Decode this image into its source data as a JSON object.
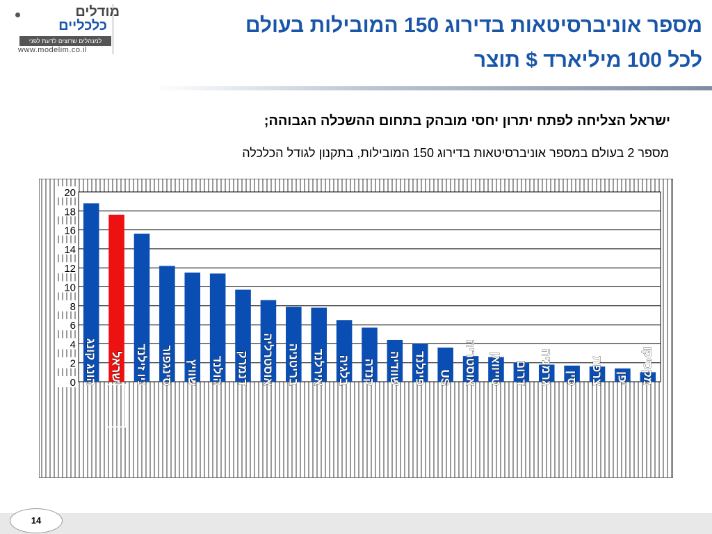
{
  "logo": {
    "brand_line1": "מודלים",
    "brand_line2": "כלכליים",
    "tagline": "למנהלים שרוצים לדעת לפני",
    "url": "www.modelim.co.il"
  },
  "title": {
    "line1": "מספר אוניברסיטאות בדירוג 150 המובילות בעולם",
    "line2": "לכל 100 מיליארד $ תוצר"
  },
  "subtitle": {
    "line1": "ישראל הצליחה לפתח יתרון יחסי מובהק בתחום ההשכלה הגבוהה;",
    "line2": "מספר 2 בעולם במספר אוניברסיטאות בדירוג 150 המובילות, בתקנון לגודל הכלכלה"
  },
  "page_number": "14",
  "colors": {
    "bar": "#0a4db3",
    "highlight_bar": "#ee1111",
    "title": "#1a56a8",
    "grid": "#000000"
  },
  "chart_data": {
    "type": "bar",
    "categories": [
      "הונג קונג",
      "ישראל",
      "ניו זילנד",
      "סינגפור",
      "שוויץ",
      "הולנד",
      "דנמרק",
      "אוסטרליה",
      "בריטניה",
      "אירלנד",
      "בלגיה",
      "קנדה",
      "שוודיה",
      "פינלנד",
      "US",
      "אוסטריה",
      "טייוואן",
      "דרום",
      "גרמניה",
      "סין",
      "צרפת",
      "יפן",
      "מקסיקו"
    ],
    "values": [
      18.8,
      17.6,
      15.6,
      12.2,
      11.5,
      11.4,
      9.7,
      8.6,
      7.9,
      7.8,
      6.5,
      5.7,
      4.4,
      4.0,
      3.6,
      2.7,
      2.6,
      2.0,
      1.8,
      1.7,
      1.6,
      1.4,
      1.0
    ],
    "highlight": "ישראל",
    "ylim": [
      0,
      20
    ],
    "yticks": [
      "0",
      "2",
      "4",
      "6",
      "8",
      "10",
      "12",
      "14",
      "16",
      "18",
      "20"
    ],
    "grid": true
  }
}
